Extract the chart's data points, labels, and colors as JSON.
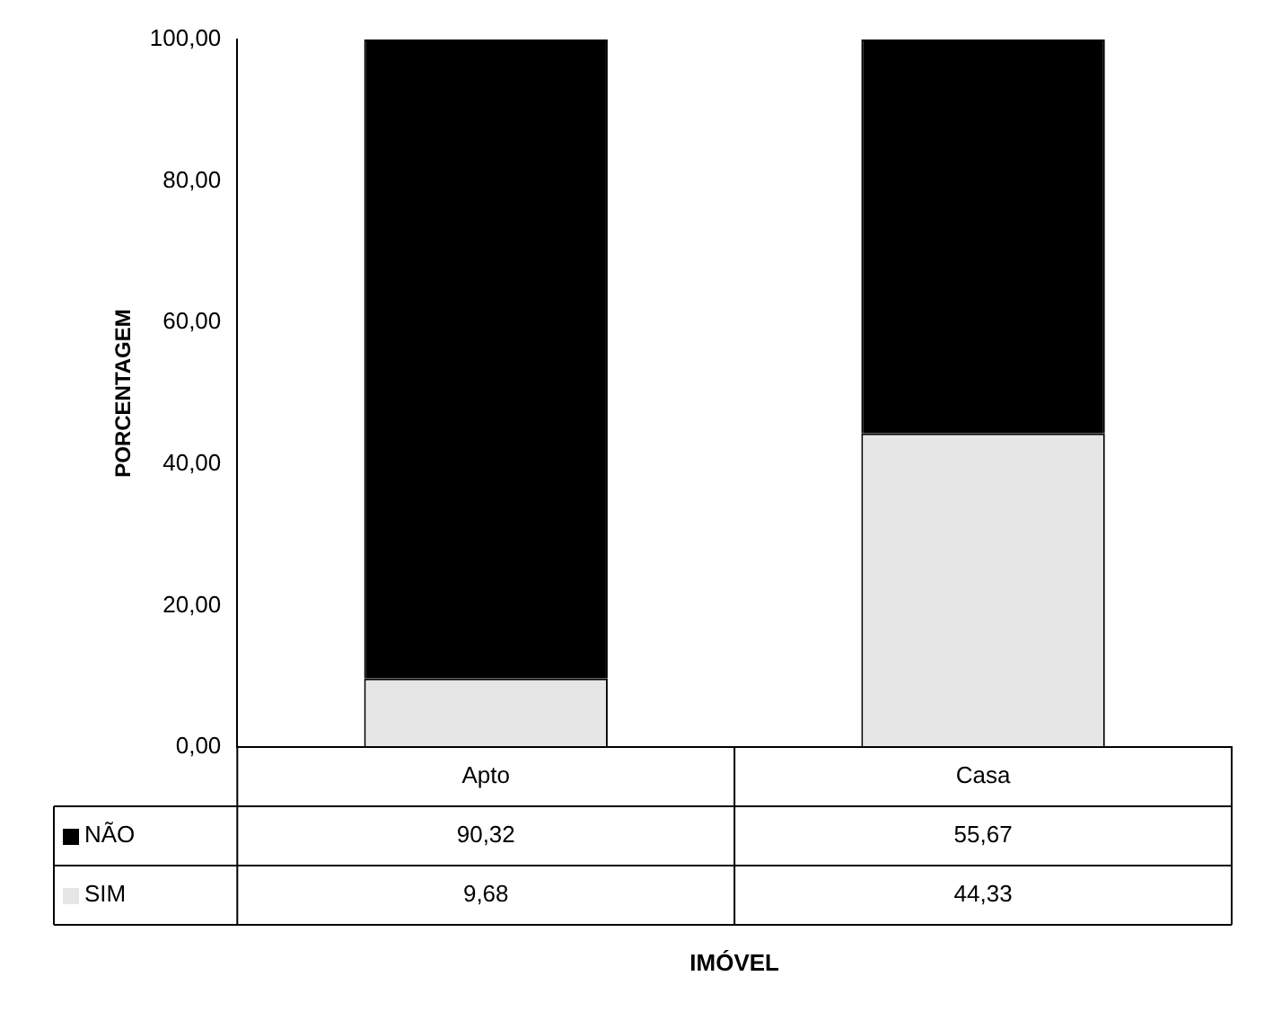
{
  "chart_data": {
    "type": "bar",
    "stacked": true,
    "annotations": [
      "IMÓVEL"
    ],
    "ylabel": "PORCENTAGEM",
    "categories": [
      "Apto",
      "Casa"
    ],
    "series": [
      {
        "name": "SIM",
        "color": "#e6e6e6",
        "values": [
          9.68,
          44.33
        ],
        "value_labels": [
          "9,68",
          "44,33"
        ]
      },
      {
        "name": "NÃO",
        "color": "#000000",
        "values": [
          90.32,
          55.67
        ],
        "value_labels": [
          "90,32",
          "55,67"
        ]
      }
    ],
    "ylim": [
      0,
      100
    ],
    "yticks": [
      {
        "value": 0,
        "label": "0,00"
      },
      {
        "value": 20,
        "label": "20,00"
      },
      {
        "value": 40,
        "label": "40,00"
      },
      {
        "value": 60,
        "label": "60,00"
      },
      {
        "value": 80,
        "label": "80,00"
      },
      {
        "value": 100,
        "label": "100,00"
      }
    ],
    "grid": false,
    "legend": "bottom"
  }
}
